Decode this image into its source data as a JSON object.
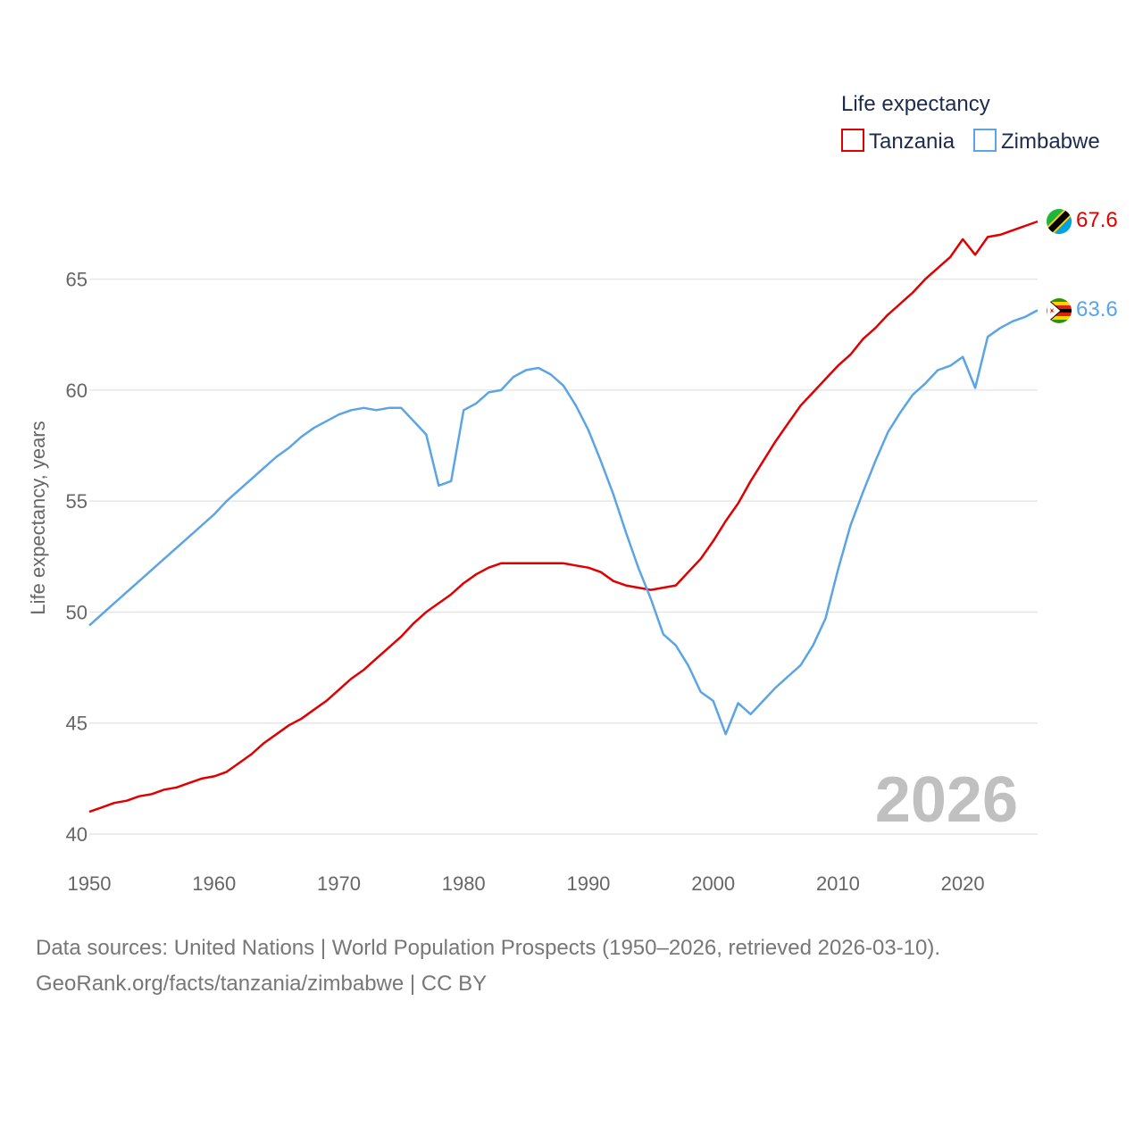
{
  "chart_data": {
    "type": "line",
    "legend_title": "Life expectancy",
    "ylabel": "Life expectancy, years",
    "xlabel": "",
    "xlim": [
      1950,
      2026
    ],
    "ylim": [
      40,
      67.6
    ],
    "x_ticks": [
      1950,
      1960,
      1970,
      1980,
      1990,
      2000,
      2010,
      2020
    ],
    "y_ticks": [
      40,
      45,
      50,
      55,
      60,
      65
    ],
    "current_year": "2026",
    "legend_position": "top-right",
    "x": [
      1950,
      1951,
      1952,
      1953,
      1954,
      1955,
      1956,
      1957,
      1958,
      1959,
      1960,
      1961,
      1962,
      1963,
      1964,
      1965,
      1966,
      1967,
      1968,
      1969,
      1970,
      1971,
      1972,
      1973,
      1974,
      1975,
      1976,
      1977,
      1978,
      1979,
      1980,
      1981,
      1982,
      1983,
      1984,
      1985,
      1986,
      1987,
      1988,
      1989,
      1990,
      1991,
      1992,
      1993,
      1994,
      1995,
      1996,
      1997,
      1998,
      1999,
      2000,
      2001,
      2002,
      2003,
      2004,
      2005,
      2006,
      2007,
      2008,
      2009,
      2010,
      2011,
      2012,
      2013,
      2014,
      2015,
      2016,
      2017,
      2018,
      2019,
      2020,
      2021,
      2022,
      2023,
      2024,
      2025,
      2026
    ],
    "series": [
      {
        "name": "Tanzania",
        "color": "#e00000",
        "end_label": "67.6",
        "flag": "tanzania-flag",
        "values": [
          41.0,
          41.2,
          41.4,
          41.5,
          41.7,
          41.8,
          42.0,
          42.1,
          42.3,
          42.5,
          42.6,
          42.8,
          43.2,
          43.6,
          44.1,
          44.5,
          44.9,
          45.2,
          45.6,
          46.0,
          46.5,
          47.0,
          47.4,
          47.9,
          48.4,
          48.9,
          49.5,
          50.0,
          50.4,
          50.8,
          51.3,
          51.7,
          52.0,
          52.2,
          52.2,
          52.2,
          52.2,
          52.2,
          52.2,
          52.1,
          52.0,
          51.8,
          51.4,
          51.2,
          51.1,
          51.0,
          51.1,
          51.2,
          51.8,
          52.4,
          53.2,
          54.1,
          54.9,
          55.9,
          56.8,
          57.7,
          58.5,
          59.3,
          59.9,
          60.5,
          61.1,
          61.6,
          62.3,
          62.8,
          63.4,
          63.9,
          64.4,
          65.0,
          65.5,
          66.0,
          66.8,
          66.1,
          66.9,
          67.0,
          67.2,
          67.4,
          67.6
        ]
      },
      {
        "name": "Zimbabwe",
        "color": "#5ba4e5",
        "end_label": "63.6",
        "flag": "zimbabwe-flag",
        "values": [
          49.4,
          49.9,
          50.4,
          50.9,
          51.4,
          51.9,
          52.4,
          52.9,
          53.4,
          53.9,
          54.4,
          55.0,
          55.5,
          56.0,
          56.5,
          57.0,
          57.4,
          57.9,
          58.3,
          58.6,
          58.9,
          59.1,
          59.2,
          59.1,
          59.2,
          59.2,
          58.6,
          58.0,
          55.7,
          55.9,
          59.1,
          59.4,
          59.9,
          60.0,
          60.6,
          60.9,
          61.0,
          60.7,
          60.2,
          59.3,
          58.2,
          56.8,
          55.3,
          53.6,
          52.0,
          50.6,
          49.0,
          48.5,
          47.6,
          46.4,
          46.0,
          44.5,
          45.9,
          45.4,
          46.0,
          46.6,
          47.1,
          47.6,
          48.5,
          49.7,
          51.9,
          53.9,
          55.4,
          56.8,
          58.1,
          59.0,
          59.8,
          60.3,
          60.9,
          61.1,
          61.5,
          60.1,
          62.4,
          62.8,
          63.1,
          63.3,
          63.6
        ]
      }
    ]
  },
  "footer": {
    "sources": "Data sources: United Nations | World Population Prospects (1950–2026, retrieved 2026-03-10).",
    "credit": "GeoRank.org/facts/tanzania/zimbabwe | CC BY"
  }
}
